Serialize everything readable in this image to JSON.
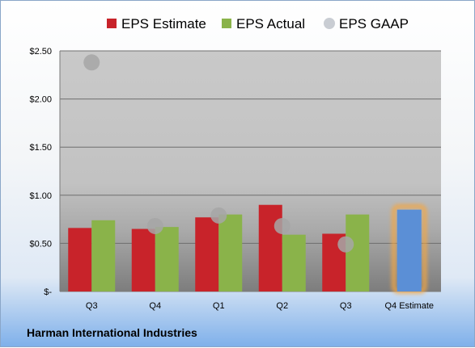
{
  "chart_data": {
    "type": "bar",
    "categories": [
      "Q3",
      "Q4",
      "Q1",
      "Q2",
      "Q3",
      "Q4 Estimate"
    ],
    "series": [
      {
        "name": "EPS Estimate",
        "values": [
          0.66,
          0.65,
          0.77,
          0.9,
          0.6,
          null
        ],
        "color": "#c8232a"
      },
      {
        "name": "EPS Actual",
        "values": [
          0.74,
          0.67,
          0.8,
          0.59,
          0.8,
          null
        ],
        "color": "#8ab34a"
      },
      {
        "name": "EPS GAAP",
        "values": [
          2.38,
          0.68,
          0.79,
          0.68,
          0.49,
          null
        ],
        "color": "#a6a6a6",
        "marker": "circle"
      }
    ],
    "projection": {
      "category": "Q4 Estimate",
      "value": 0.85,
      "color": "#5b8fd6",
      "glow": "#f5a742"
    },
    "y_ticks": [
      {
        "value": 0,
        "label": "$-"
      },
      {
        "value": 0.5,
        "label": "$0.50"
      },
      {
        "value": 1.0,
        "label": "$1.00"
      },
      {
        "value": 1.5,
        "label": "$1.50"
      },
      {
        "value": 2.0,
        "label": "$2.00"
      },
      {
        "value": 2.5,
        "label": "$2.50"
      }
    ],
    "ylim": [
      0,
      2.5
    ],
    "grid": true,
    "legend": "top",
    "company": "Harman International Industries"
  }
}
